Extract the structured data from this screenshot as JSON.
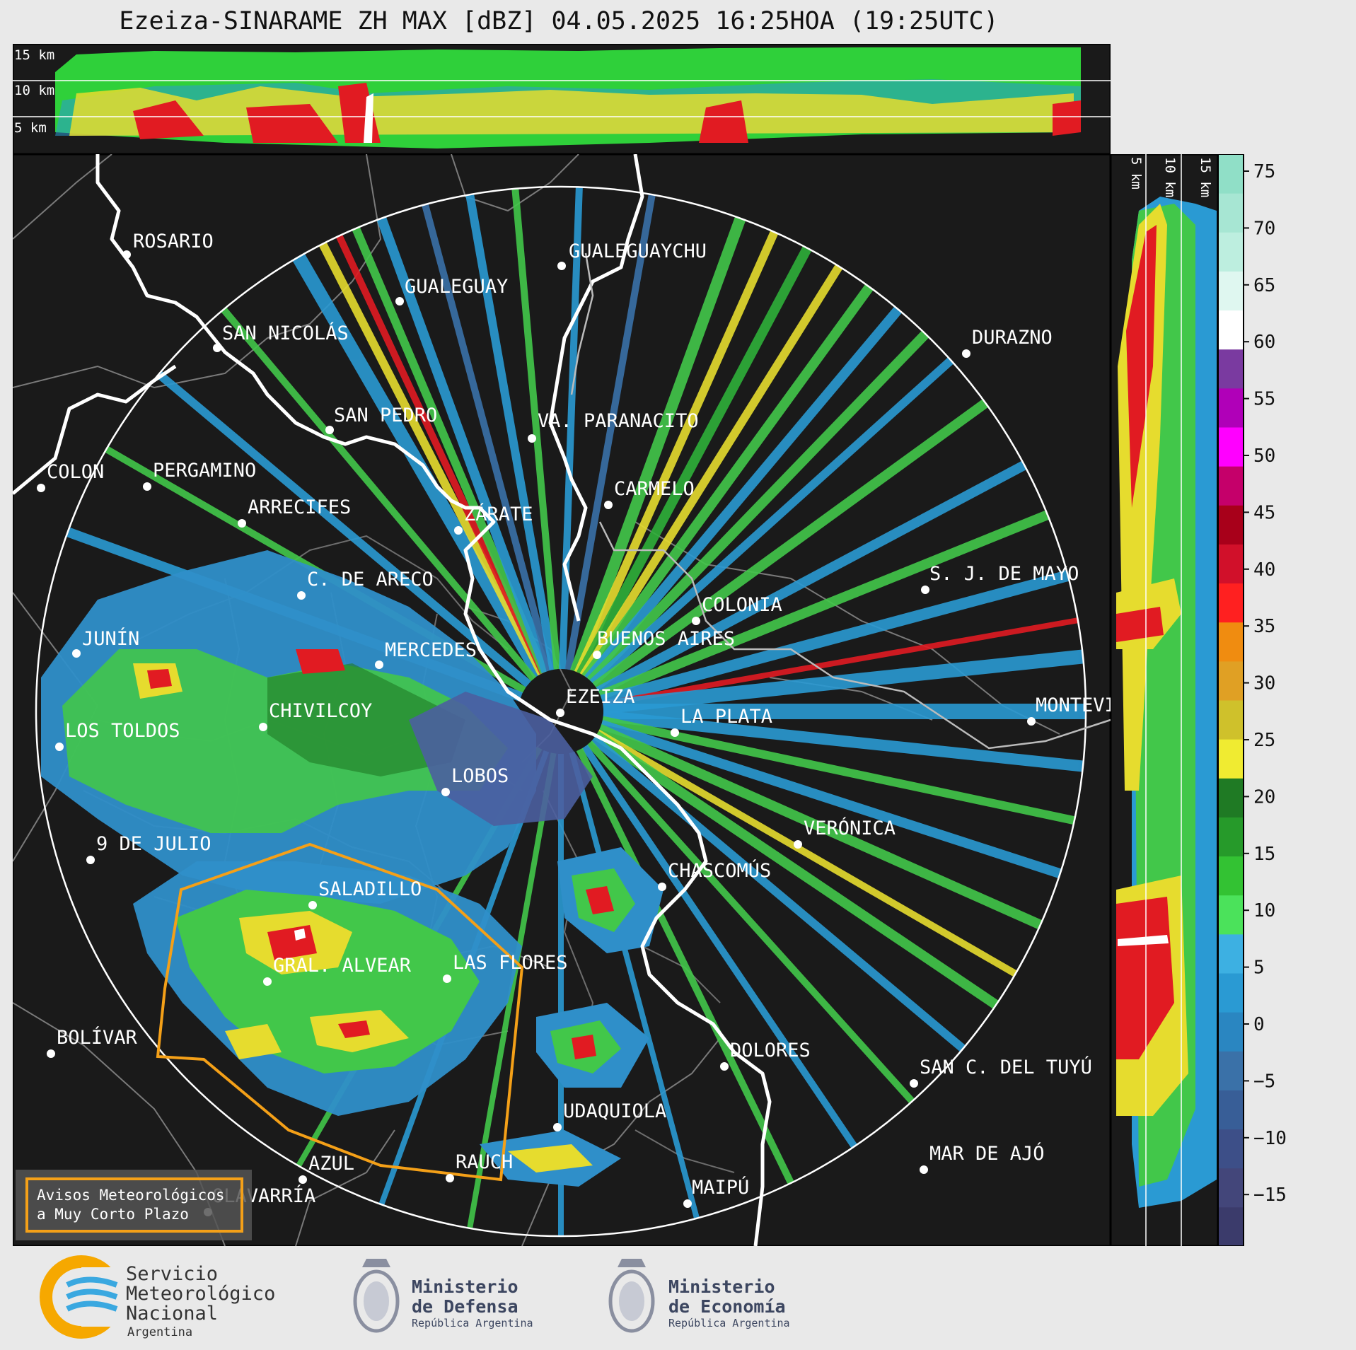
{
  "title": "Ezeiza-SINARAME ZH MAX [dBZ] 04.05.2025 16:25HOA (19:25UTC)",
  "top_panel": {
    "levels": [
      "15 km",
      "10 km",
      "5 km"
    ]
  },
  "side_panel": {
    "levels": [
      "5 km",
      "10 km",
      "15 km"
    ]
  },
  "colorbar": {
    "ticks": [
      "75",
      "70",
      "65",
      "60",
      "55",
      "50",
      "45",
      "40",
      "35",
      "30",
      "25",
      "20",
      "15",
      "10",
      "5",
      "0",
      "−5",
      "−10",
      "−15"
    ],
    "colors": [
      "#3b3b6b",
      "#43467a",
      "#3d4f88",
      "#385e97",
      "#3a71a8",
      "#2a86c1",
      "#2a9ad3",
      "#3db0e2",
      "#4be25b",
      "#33c233",
      "#269a2a",
      "#1f7a24",
      "#f0eb31",
      "#cfc12b",
      "#e0a024",
      "#f08c10",
      "#ff2020",
      "#d1102a",
      "#a8001a",
      "#c5006a",
      "#ff00ff",
      "#b000b8",
      "#7a3aa0",
      "#ffffff",
      "#dff7f0",
      "#bdeedf",
      "#a7e6d3",
      "#90dfc7"
    ]
  },
  "legend": {
    "line1": "Avisos Meteorológicos",
    "line2": "a Muy Corto Plazo"
  },
  "cities": [
    {
      "name": "ROSARIO"
    },
    {
      "name": "GUALEGUAYCHU"
    },
    {
      "name": "GUALEGUAY"
    },
    {
      "name": "SAN NICOLÁS"
    },
    {
      "name": "DURAZNO"
    },
    {
      "name": "SAN PEDRO"
    },
    {
      "name": "VA. PARANACITO"
    },
    {
      "name": "COLON"
    },
    {
      "name": "PERGAMINO"
    },
    {
      "name": "CARMELO"
    },
    {
      "name": "ARRECIFES"
    },
    {
      "name": "ZÁRATE"
    },
    {
      "name": "S. J. DE MAYO"
    },
    {
      "name": "C. DE ARECO"
    },
    {
      "name": "COLONIA"
    },
    {
      "name": "BUENOS AIRES"
    },
    {
      "name": "JUNÍN"
    },
    {
      "name": "MERCEDES"
    },
    {
      "name": "EZEIZA"
    },
    {
      "name": "MONTEVIDEO"
    },
    {
      "name": "CHIVILCOY"
    },
    {
      "name": "LA PLATA"
    },
    {
      "name": "LOS TOLDOS"
    },
    {
      "name": "LOBOS"
    },
    {
      "name": "VERÓNICA"
    },
    {
      "name": "9 DE JULIO"
    },
    {
      "name": "CHASCOMÚS"
    },
    {
      "name": "SALADILLO"
    },
    {
      "name": "GRAL. ALVEAR"
    },
    {
      "name": "LAS FLORES"
    },
    {
      "name": "BOLÍVAR"
    },
    {
      "name": "DOLORES"
    },
    {
      "name": "SAN C. DEL TUYÚ"
    },
    {
      "name": "UDAQUIOLA"
    },
    {
      "name": "MAR DE AJÓ"
    },
    {
      "name": "AZUL"
    },
    {
      "name": "RAUCH"
    },
    {
      "name": "OLAVARRÍA"
    },
    {
      "name": "MAIPÚ"
    }
  ],
  "logos": {
    "smn": {
      "line1": "Servicio",
      "line2": "Meteorológico",
      "line3": "Nacional",
      "line4": "Argentina"
    },
    "defensa": {
      "line1": "Ministerio",
      "line2": "de Defensa",
      "line3": "República Argentina"
    },
    "economia": {
      "line1": "Ministerio",
      "line2": "de Economía",
      "line3": "República Argentina"
    }
  }
}
